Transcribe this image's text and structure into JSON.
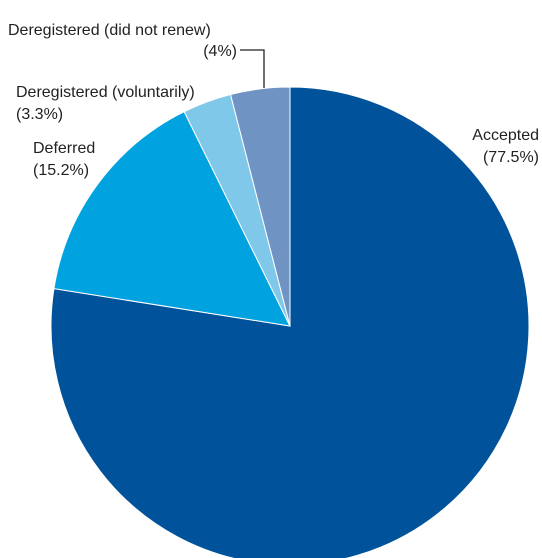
{
  "chart_data": {
    "type": "pie",
    "title": "",
    "start_angle_deg": 0,
    "direction": "clockwise",
    "legend": "none",
    "slices": [
      {
        "name": "Accepted",
        "label": "Accepted",
        "value_label": "(77.5%)",
        "value": 77.5,
        "color": "#00539b"
      },
      {
        "name": "Deferred",
        "label": "Deferred",
        "value_label": "(15.2%)",
        "value": 15.2,
        "color": "#00a3e0"
      },
      {
        "name": "Deregistered (voluntarily)",
        "label": "Deregistered (voluntarily)",
        "value_label": "(3.3%)",
        "value": 3.3,
        "color": "#7fc8ea"
      },
      {
        "name": "Deregistered (did not renew)",
        "label": "Deregistered (did not renew)",
        "value_label": "(4%)",
        "value": 4,
        "color": "#6f94c3"
      }
    ]
  }
}
